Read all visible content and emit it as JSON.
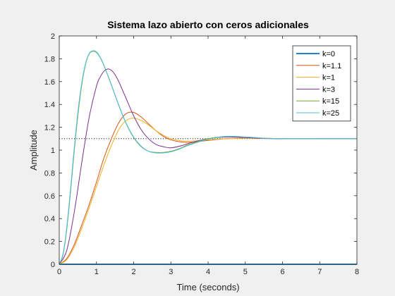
{
  "chart_data": {
    "type": "line",
    "title": "Sistema lazo abierto con ceros adicionales",
    "xlabel": "Time (seconds)",
    "ylabel": "Amplitude",
    "xlim": [
      0,
      8
    ],
    "ylim": [
      0,
      2
    ],
    "xticks": [
      0,
      1,
      2,
      3,
      4,
      5,
      6,
      7,
      8
    ],
    "yticks": [
      0,
      0.2,
      0.4,
      0.6,
      0.8,
      1,
      1.2,
      1.4,
      1.6,
      1.8,
      2
    ],
    "ytick_labels": [
      "0",
      "0.2",
      "0.4",
      "0.6",
      "0.8",
      "1",
      "1.2",
      "1.4",
      "1.6",
      "1.8",
      "2"
    ],
    "grid": false,
    "legend_position": "top-right",
    "reference_line": {
      "y": 1.1,
      "style": "dotted",
      "color": "#000000"
    },
    "series": [
      {
        "name": "k=0",
        "color": "#0072BD",
        "x": [
          0,
          8
        ],
        "y": [
          0,
          0
        ]
      },
      {
        "name": "k=1.1",
        "color": "#D95319",
        "x": [
          0,
          0.2,
          0.4,
          0.6,
          0.8,
          1.0,
          1.2,
          1.4,
          1.6,
          1.8,
          2.0,
          2.2,
          2.4,
          2.6,
          2.8,
          3.0,
          3.3,
          3.6,
          4.0,
          4.5,
          5.0,
          5.5,
          6.0,
          7.0,
          8.0
        ],
        "y": [
          0,
          0.05,
          0.17,
          0.34,
          0.52,
          0.72,
          0.93,
          1.1,
          1.24,
          1.32,
          1.33,
          1.29,
          1.23,
          1.17,
          1.12,
          1.09,
          1.07,
          1.07,
          1.085,
          1.1,
          1.105,
          1.102,
          1.1,
          1.1,
          1.1
        ]
      },
      {
        "name": "k=1",
        "color": "#EDB120",
        "x": [
          0,
          0.2,
          0.4,
          0.6,
          0.8,
          1.0,
          1.2,
          1.4,
          1.6,
          1.8,
          2.0,
          2.2,
          2.4,
          2.6,
          2.8,
          3.0,
          3.3,
          3.6,
          4.0,
          4.5,
          5.0,
          5.5,
          6.0,
          7.0,
          8.0
        ],
        "y": [
          0,
          0.04,
          0.15,
          0.31,
          0.49,
          0.68,
          0.87,
          1.04,
          1.18,
          1.26,
          1.28,
          1.26,
          1.22,
          1.17,
          1.13,
          1.1,
          1.08,
          1.08,
          1.09,
          1.1,
          1.104,
          1.102,
          1.1,
          1.1,
          1.1
        ]
      },
      {
        "name": "k=3",
        "color": "#7E2F8E",
        "x": [
          0,
          0.2,
          0.4,
          0.6,
          0.8,
          1.0,
          1.1,
          1.2,
          1.3,
          1.4,
          1.5,
          1.6,
          1.8,
          2.0,
          2.2,
          2.4,
          2.6,
          2.8,
          3.0,
          3.3,
          3.6,
          4.0,
          4.5,
          5.0,
          5.5,
          6.0,
          7.0,
          8.0
        ],
        "y": [
          0,
          0.12,
          0.45,
          0.88,
          1.28,
          1.56,
          1.64,
          1.69,
          1.71,
          1.7,
          1.66,
          1.6,
          1.45,
          1.3,
          1.18,
          1.1,
          1.05,
          1.03,
          1.02,
          1.04,
          1.07,
          1.1,
          1.115,
          1.11,
          1.103,
          1.1,
          1.1,
          1.1
        ]
      },
      {
        "name": "k=15",
        "color": "#77AC30",
        "x": [
          0,
          0.1,
          0.2,
          0.3,
          0.4,
          0.5,
          0.6,
          0.7,
          0.8,
          0.9,
          1.0,
          1.1,
          1.2,
          1.4,
          1.6,
          1.8,
          2.0,
          2.2,
          2.4,
          2.6,
          2.8,
          3.0,
          3.2,
          3.5,
          4.0,
          4.5,
          5.0,
          5.5,
          6.0,
          7.0,
          8.0
        ],
        "y": [
          0,
          0.08,
          0.3,
          0.62,
          0.98,
          1.3,
          1.56,
          1.74,
          1.84,
          1.865,
          1.855,
          1.81,
          1.74,
          1.57,
          1.39,
          1.23,
          1.11,
          1.03,
          0.99,
          0.98,
          0.98,
          0.99,
          1.01,
          1.05,
          1.1,
          1.12,
          1.115,
          1.105,
          1.1,
          1.1,
          1.1
        ]
      },
      {
        "name": "k=25",
        "color": "#4DBEEE",
        "x": [
          0,
          0.1,
          0.2,
          0.3,
          0.4,
          0.5,
          0.6,
          0.7,
          0.8,
          0.9,
          1.0,
          1.1,
          1.2,
          1.4,
          1.6,
          1.8,
          2.0,
          2.2,
          2.4,
          2.6,
          2.8,
          3.0,
          3.2,
          3.5,
          4.0,
          4.5,
          5.0,
          5.5,
          6.0,
          7.0,
          8.0
        ],
        "y": [
          0,
          0.09,
          0.32,
          0.65,
          1.01,
          1.33,
          1.58,
          1.75,
          1.845,
          1.87,
          1.86,
          1.815,
          1.745,
          1.575,
          1.395,
          1.235,
          1.115,
          1.035,
          0.99,
          0.975,
          0.975,
          0.985,
          1.005,
          1.045,
          1.095,
          1.12,
          1.115,
          1.105,
          1.1,
          1.1,
          1.1
        ]
      }
    ]
  }
}
